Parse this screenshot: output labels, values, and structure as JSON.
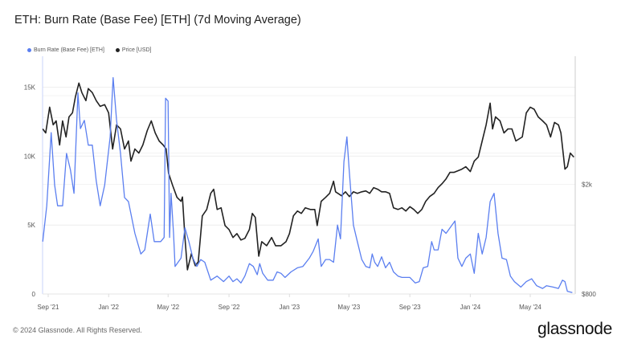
{
  "chart_data": {
    "type": "line",
    "title": "ETH: Burn Rate (Base Fee) [ETH] (7d Moving Average)",
    "legend_placement": "top-left",
    "grid": true,
    "x_axis": {
      "type": "date",
      "ticks": [
        "Sep '21",
        "Jan '22",
        "May '22",
        "Sep '22",
        "Jan '23",
        "May '23",
        "Sep '23",
        "Jan '24",
        "May '24"
      ],
      "tick_dates": [
        "2021-09-01",
        "2022-01-01",
        "2022-05-01",
        "2022-09-01",
        "2023-01-01",
        "2023-05-01",
        "2023-09-01",
        "2024-01-01",
        "2024-05-01"
      ],
      "range": [
        "2021-08-21",
        "2024-07-28"
      ]
    },
    "y_left": {
      "scale": "linear",
      "range": [
        0,
        17250
      ],
      "ticks": [
        0,
        5000,
        10000,
        15000
      ],
      "tick_labels": [
        "0",
        "5K",
        "10K",
        "15K"
      ]
    },
    "y_right": {
      "scale": "log",
      "range": [
        800,
        5840
      ],
      "ticks": [
        800,
        2000
      ],
      "tick_labels": [
        "$800",
        "$2k"
      ]
    },
    "series": [
      {
        "name": "Burn Rate (Base Fee) [ETH]",
        "axis": "left",
        "color": "#5b7ff0",
        "points": [
          [
            "2021-08-21",
            3800
          ],
          [
            "2021-08-29",
            6400
          ],
          [
            "2021-09-07",
            11700
          ],
          [
            "2021-09-14",
            7900
          ],
          [
            "2021-09-20",
            6400
          ],
          [
            "2021-09-30",
            6400
          ],
          [
            "2021-10-08",
            10200
          ],
          [
            "2021-10-16",
            9000
          ],
          [
            "2021-10-23",
            7300
          ],
          [
            "2021-10-31",
            14600
          ],
          [
            "2021-11-05",
            12000
          ],
          [
            "2021-11-13",
            12600
          ],
          [
            "2021-11-21",
            10800
          ],
          [
            "2021-11-29",
            10800
          ],
          [
            "2021-12-07",
            8200
          ],
          [
            "2021-12-15",
            6400
          ],
          [
            "2021-12-24",
            7900
          ],
          [
            "2022-01-04",
            11400
          ],
          [
            "2022-01-10",
            15700
          ],
          [
            "2022-01-17",
            12600
          ],
          [
            "2022-01-25",
            10200
          ],
          [
            "2022-02-02",
            7000
          ],
          [
            "2022-02-10",
            6700
          ],
          [
            "2022-02-23",
            4400
          ],
          [
            "2022-03-07",
            2900
          ],
          [
            "2022-03-15",
            3200
          ],
          [
            "2022-03-26",
            5800
          ],
          [
            "2022-04-03",
            3800
          ],
          [
            "2022-04-16",
            3800
          ],
          [
            "2022-04-23",
            4100
          ],
          [
            "2022-04-26",
            14200
          ],
          [
            "2022-05-01",
            14000
          ],
          [
            "2022-05-04",
            4100
          ],
          [
            "2022-05-07",
            7300
          ],
          [
            "2022-05-12",
            4400
          ],
          [
            "2022-05-15",
            2000
          ],
          [
            "2022-05-27",
            2600
          ],
          [
            "2022-06-04",
            4800
          ],
          [
            "2022-06-12",
            3800
          ],
          [
            "2022-06-20",
            2600
          ],
          [
            "2022-06-28",
            2000
          ],
          [
            "2022-07-06",
            2500
          ],
          [
            "2022-07-14",
            2300
          ],
          [
            "2022-07-26",
            1000
          ],
          [
            "2022-08-08",
            1300
          ],
          [
            "2022-08-21",
            900
          ],
          [
            "2022-09-01",
            1300
          ],
          [
            "2022-09-09",
            900
          ],
          [
            "2022-09-17",
            1100
          ],
          [
            "2022-09-25",
            800
          ],
          [
            "2022-10-03",
            1300
          ],
          [
            "2022-10-12",
            2200
          ],
          [
            "2022-10-20",
            2000
          ],
          [
            "2022-10-28",
            1400
          ],
          [
            "2022-11-02",
            2200
          ],
          [
            "2022-11-08",
            1500
          ],
          [
            "2022-11-18",
            1000
          ],
          [
            "2022-11-29",
            1000
          ],
          [
            "2022-12-07",
            1600
          ],
          [
            "2022-12-15",
            1500
          ],
          [
            "2022-12-23",
            1200
          ],
          [
            "2023-01-04",
            1600
          ],
          [
            "2023-01-17",
            1900
          ],
          [
            "2023-01-28",
            2000
          ],
          [
            "2023-02-10",
            2600
          ],
          [
            "2023-02-18",
            3100
          ],
          [
            "2023-02-28",
            4000
          ],
          [
            "2023-03-06",
            2000
          ],
          [
            "2023-03-15",
            2500
          ],
          [
            "2023-03-23",
            2500
          ],
          [
            "2023-03-31",
            2300
          ],
          [
            "2023-04-08",
            5000
          ],
          [
            "2023-04-14",
            4000
          ],
          [
            "2023-04-21",
            9600
          ],
          [
            "2023-04-27",
            11400
          ],
          [
            "2023-05-02",
            8800
          ],
          [
            "2023-05-10",
            5000
          ],
          [
            "2023-05-18",
            3800
          ],
          [
            "2023-05-27",
            2500
          ],
          [
            "2023-06-04",
            2000
          ],
          [
            "2023-06-12",
            1900
          ],
          [
            "2023-06-17",
            2900
          ],
          [
            "2023-06-22",
            2300
          ],
          [
            "2023-06-28",
            2000
          ],
          [
            "2023-07-06",
            2700
          ],
          [
            "2023-07-14",
            1900
          ],
          [
            "2023-07-22",
            2300
          ],
          [
            "2023-07-30",
            1600
          ],
          [
            "2023-08-08",
            1300
          ],
          [
            "2023-08-16",
            1200
          ],
          [
            "2023-08-25",
            1200
          ],
          [
            "2023-09-01",
            1200
          ],
          [
            "2023-09-12",
            800
          ],
          [
            "2023-09-20",
            900
          ],
          [
            "2023-09-28",
            1900
          ],
          [
            "2023-10-07",
            2000
          ],
          [
            "2023-10-15",
            3800
          ],
          [
            "2023-10-20",
            3200
          ],
          [
            "2023-10-28",
            3200
          ],
          [
            "2023-11-05",
            4700
          ],
          [
            "2023-11-13",
            4400
          ],
          [
            "2023-12-01",
            5300
          ],
          [
            "2023-12-07",
            2600
          ],
          [
            "2023-12-15",
            2000
          ],
          [
            "2023-12-23",
            2600
          ],
          [
            "2024-01-01",
            2900
          ],
          [
            "2024-01-09",
            1500
          ],
          [
            "2024-01-17",
            4400
          ],
          [
            "2024-01-25",
            2900
          ],
          [
            "2024-02-02",
            4100
          ],
          [
            "2024-02-10",
            6700
          ],
          [
            "2024-02-18",
            7300
          ],
          [
            "2024-02-26",
            4400
          ],
          [
            "2024-03-05",
            2600
          ],
          [
            "2024-03-14",
            2500
          ],
          [
            "2024-03-22",
            1300
          ],
          [
            "2024-03-30",
            900
          ],
          [
            "2024-04-12",
            500
          ],
          [
            "2024-04-23",
            900
          ],
          [
            "2024-05-04",
            1100
          ],
          [
            "2024-05-14",
            600
          ],
          [
            "2024-05-26",
            400
          ],
          [
            "2024-06-03",
            600
          ],
          [
            "2024-06-16",
            500
          ],
          [
            "2024-06-27",
            400
          ],
          [
            "2024-07-05",
            1000
          ],
          [
            "2024-07-10",
            900
          ],
          [
            "2024-07-15",
            200
          ],
          [
            "2024-07-25",
            100
          ]
        ]
      },
      {
        "name": "Price [USD]",
        "axis": "right",
        "color": "#222222",
        "points": [
          [
            "2021-08-21",
            3181
          ],
          [
            "2021-08-27",
            3075
          ],
          [
            "2021-09-04",
            3815
          ],
          [
            "2021-09-11",
            3290
          ],
          [
            "2021-09-17",
            3402
          ],
          [
            "2021-09-24",
            2780
          ],
          [
            "2021-09-30",
            3402
          ],
          [
            "2021-10-07",
            2974
          ],
          [
            "2021-10-13",
            3518
          ],
          [
            "2021-10-20",
            3638
          ],
          [
            "2021-10-26",
            4163
          ],
          [
            "2021-11-02",
            4667
          ],
          [
            "2021-11-08",
            4307
          ],
          [
            "2021-11-16",
            4027
          ],
          [
            "2021-11-21",
            4454
          ],
          [
            "2021-11-29",
            4307
          ],
          [
            "2021-12-07",
            4027
          ],
          [
            "2021-12-15",
            3842
          ],
          [
            "2021-12-24",
            3894
          ],
          [
            "2022-01-01",
            3638
          ],
          [
            "2022-01-09",
            2688
          ],
          [
            "2022-01-17",
            3290
          ],
          [
            "2022-01-25",
            3181
          ],
          [
            "2022-02-02",
            2688
          ],
          [
            "2022-02-10",
            2875
          ],
          [
            "2022-02-15",
            2430
          ],
          [
            "2022-02-23",
            2688
          ],
          [
            "2022-03-03",
            2598
          ],
          [
            "2022-03-11",
            2780
          ],
          [
            "2022-03-20",
            3138
          ],
          [
            "2022-03-28",
            3402
          ],
          [
            "2022-04-05",
            3075
          ],
          [
            "2022-04-13",
            2875
          ],
          [
            "2022-04-21",
            2780
          ],
          [
            "2022-04-27",
            2688
          ],
          [
            "2022-05-02",
            2197
          ],
          [
            "2022-05-10",
            1986
          ],
          [
            "2022-05-19",
            1795
          ],
          [
            "2022-05-27",
            1736
          ],
          [
            "2022-05-30",
            1800
          ],
          [
            "2022-06-04",
            1283
          ],
          [
            "2022-06-09",
            979
          ],
          [
            "2022-06-17",
            1120
          ],
          [
            "2022-06-25",
            1013
          ],
          [
            "2022-07-01",
            1048
          ],
          [
            "2022-07-09",
            1537
          ],
          [
            "2022-07-18",
            1622
          ],
          [
            "2022-07-26",
            1856
          ],
          [
            "2022-08-01",
            1920
          ],
          [
            "2022-08-08",
            1622
          ],
          [
            "2022-08-16",
            1644
          ],
          [
            "2022-08-24",
            1418
          ],
          [
            "2022-09-01",
            1371
          ],
          [
            "2022-09-09",
            1283
          ],
          [
            "2022-09-17",
            1326
          ],
          [
            "2022-09-25",
            1256
          ],
          [
            "2022-10-03",
            1274
          ],
          [
            "2022-10-12",
            1371
          ],
          [
            "2022-10-18",
            1569
          ],
          [
            "2022-10-24",
            1517
          ],
          [
            "2022-10-31",
            1098
          ],
          [
            "2022-11-06",
            1239
          ],
          [
            "2022-11-16",
            1198
          ],
          [
            "2022-11-26",
            1283
          ],
          [
            "2022-12-04",
            1198
          ],
          [
            "2022-12-15",
            1198
          ],
          [
            "2022-12-25",
            1239
          ],
          [
            "2023-01-01",
            1326
          ],
          [
            "2023-01-09",
            1537
          ],
          [
            "2023-01-17",
            1601
          ],
          [
            "2023-01-25",
            1569
          ],
          [
            "2023-02-02",
            1644
          ],
          [
            "2023-02-12",
            1622
          ],
          [
            "2023-02-21",
            1622
          ],
          [
            "2023-02-26",
            1418
          ],
          [
            "2023-03-06",
            1736
          ],
          [
            "2023-03-15",
            1795
          ],
          [
            "2023-03-23",
            1856
          ],
          [
            "2023-03-31",
            2054
          ],
          [
            "2023-04-04",
            1880
          ],
          [
            "2023-04-16",
            1819
          ],
          [
            "2023-04-24",
            1880
          ],
          [
            "2023-05-02",
            1807
          ],
          [
            "2023-05-10",
            1880
          ],
          [
            "2023-05-18",
            1856
          ],
          [
            "2023-05-27",
            1880
          ],
          [
            "2023-06-04",
            1894
          ],
          [
            "2023-06-12",
            1856
          ],
          [
            "2023-06-20",
            1946
          ],
          [
            "2023-06-28",
            1920
          ],
          [
            "2023-07-06",
            1880
          ],
          [
            "2023-07-14",
            1880
          ],
          [
            "2023-07-22",
            1856
          ],
          [
            "2023-07-30",
            1644
          ],
          [
            "2023-08-08",
            1622
          ],
          [
            "2023-08-16",
            1644
          ],
          [
            "2023-08-24",
            1601
          ],
          [
            "2023-09-01",
            1660
          ],
          [
            "2023-09-09",
            1622
          ],
          [
            "2023-09-17",
            1569
          ],
          [
            "2023-09-25",
            1622
          ],
          [
            "2023-10-03",
            1736
          ],
          [
            "2023-10-11",
            1807
          ],
          [
            "2023-10-20",
            1856
          ],
          [
            "2023-10-28",
            1946
          ],
          [
            "2023-11-05",
            2012
          ],
          [
            "2023-11-13",
            2095
          ],
          [
            "2023-11-21",
            2211
          ],
          [
            "2023-11-29",
            2211
          ],
          [
            "2023-12-07",
            2241
          ],
          [
            "2023-12-15",
            2272
          ],
          [
            "2023-12-23",
            2318
          ],
          [
            "2024-01-01",
            2226
          ],
          [
            "2024-01-09",
            2430
          ],
          [
            "2024-01-17",
            2513
          ],
          [
            "2024-01-25",
            2875
          ],
          [
            "2024-02-02",
            3290
          ],
          [
            "2024-02-10",
            3946
          ],
          [
            "2024-02-15",
            3181
          ],
          [
            "2024-02-21",
            3518
          ],
          [
            "2024-03-01",
            3402
          ],
          [
            "2024-03-09",
            3075
          ],
          [
            "2024-03-17",
            3181
          ],
          [
            "2024-03-25",
            3181
          ],
          [
            "2024-04-02",
            2875
          ],
          [
            "2024-04-15",
            2974
          ],
          [
            "2024-04-23",
            3638
          ],
          [
            "2024-05-01",
            3815
          ],
          [
            "2024-05-09",
            3750
          ],
          [
            "2024-05-17",
            3518
          ],
          [
            "2024-05-26",
            3402
          ],
          [
            "2024-06-03",
            3290
          ],
          [
            "2024-06-11",
            2974
          ],
          [
            "2024-06-19",
            3357
          ],
          [
            "2024-06-27",
            3290
          ],
          [
            "2024-07-02",
            3075
          ],
          [
            "2024-07-10",
            2272
          ],
          [
            "2024-07-15",
            2318
          ],
          [
            "2024-07-21",
            2598
          ],
          [
            "2024-07-28",
            2513
          ]
        ]
      }
    ]
  },
  "footer": {
    "copyright": "© 2024 Glassnode. All Rights Reserved.",
    "logo": "glassnode"
  }
}
